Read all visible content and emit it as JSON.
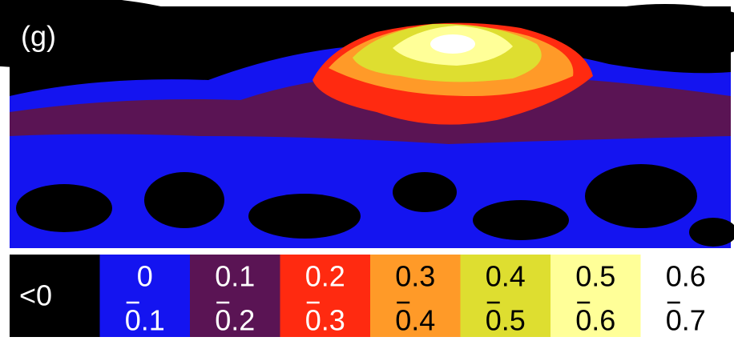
{
  "panel_label": "(g)",
  "legend": {
    "items": [
      {
        "label": "<0",
        "color": "#000000"
      },
      {
        "low": "0",
        "high": "0.1",
        "color": "#1414f0"
      },
      {
        "low": "0.1",
        "high": "0.2",
        "color": "#5a1454"
      },
      {
        "low": "0.2",
        "high": "0.3",
        "color": "#ff2a10"
      },
      {
        "low": "0.3",
        "high": "0.4",
        "color": "#ff9a28"
      },
      {
        "low": "0.4",
        "high": "0.5",
        "color": "#dede30"
      },
      {
        "low": "0.5",
        "high": "0.6",
        "color": "#ffff98"
      },
      {
        "low": "0.6",
        "high": "0.7",
        "color": "#ffffff"
      }
    ]
  }
}
